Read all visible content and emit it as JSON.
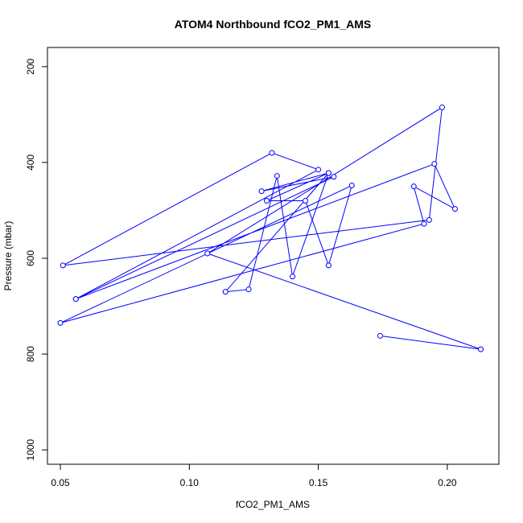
{
  "chart_data": {
    "type": "line",
    "title": "ATOM4 Northbound fCO2_PM1_AMS",
    "xlabel": "fCO2_PM1_AMS",
    "ylabel": "Pressure (mbar)",
    "xlim": [
      0.045,
      0.22
    ],
    "ylim": [
      1030,
      160
    ],
    "y_reversed": true,
    "x_ticks": [
      {
        "value": 0.05,
        "label": "0.05"
      },
      {
        "value": 0.1,
        "label": "0.10"
      },
      {
        "value": 0.15,
        "label": "0.15"
      },
      {
        "value": 0.2,
        "label": "0.20"
      }
    ],
    "y_ticks": [
      {
        "value": 200,
        "label": "200"
      },
      {
        "value": 400,
        "label": "400"
      },
      {
        "value": 600,
        "label": "600"
      },
      {
        "value": 800,
        "label": "800"
      },
      {
        "value": 1000,
        "label": "1000"
      }
    ],
    "series": [
      {
        "color": "#0000ff",
        "marker": "open-circle",
        "points": [
          {
            "x": 0.174,
            "y": 762
          },
          {
            "x": 0.213,
            "y": 790
          },
          {
            "x": 0.107,
            "y": 590
          },
          {
            "x": 0.198,
            "y": 285
          },
          {
            "x": 0.193,
            "y": 520
          },
          {
            "x": 0.051,
            "y": 615
          },
          {
            "x": 0.132,
            "y": 380
          },
          {
            "x": 0.15,
            "y": 415
          },
          {
            "x": 0.056,
            "y": 685
          },
          {
            "x": 0.156,
            "y": 430
          },
          {
            "x": 0.128,
            "y": 460
          },
          {
            "x": 0.154,
            "y": 422
          },
          {
            "x": 0.114,
            "y": 670
          },
          {
            "x": 0.123,
            "y": 665
          },
          {
            "x": 0.134,
            "y": 428
          },
          {
            "x": 0.14,
            "y": 638
          },
          {
            "x": 0.154,
            "y": 422
          },
          {
            "x": 0.13,
            "y": 480
          },
          {
            "x": 0.145,
            "y": 480
          },
          {
            "x": 0.154,
            "y": 615
          },
          {
            "x": 0.163,
            "y": 448
          },
          {
            "x": 0.05,
            "y": 735
          },
          {
            "x": 0.191,
            "y": 528
          },
          {
            "x": 0.187,
            "y": 450
          },
          {
            "x": 0.203,
            "y": 497
          },
          {
            "x": 0.195,
            "y": 403
          },
          {
            "x": 0.056,
            "y": 685
          }
        ]
      }
    ]
  }
}
